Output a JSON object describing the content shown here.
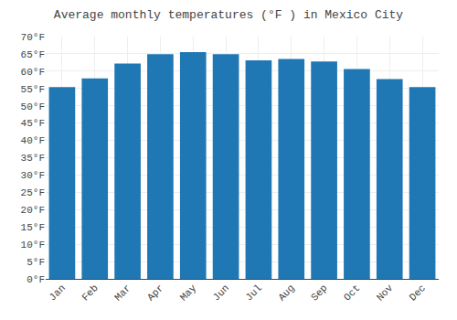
{
  "chart_data": {
    "type": "bar",
    "title": "Average monthly temperatures (°F ) in Mexico City",
    "categories": [
      "Jan",
      "Feb",
      "Mar",
      "Apr",
      "May",
      "Jun",
      "Jul",
      "Aug",
      "Sep",
      "Oct",
      "Nov",
      "Dec"
    ],
    "values": [
      55.4,
      57.9,
      62.2,
      64.9,
      65.5,
      64.9,
      63.1,
      63.5,
      62.8,
      60.6,
      57.7,
      55.4
    ],
    "ylim": [
      0,
      70
    ],
    "yticks": [
      {
        "value": 0,
        "label": "0°F"
      },
      {
        "value": 5,
        "label": "5°F"
      },
      {
        "value": 10,
        "label": "10°F"
      },
      {
        "value": 15,
        "label": "15°F"
      },
      {
        "value": 20,
        "label": "20°F"
      },
      {
        "value": 25,
        "label": "25°F"
      },
      {
        "value": 30,
        "label": "30°F"
      },
      {
        "value": 35,
        "label": "35°F"
      },
      {
        "value": 40,
        "label": "40°F"
      },
      {
        "value": 45,
        "label": "45°F"
      },
      {
        "value": 50,
        "label": "50°F"
      },
      {
        "value": 55,
        "label": "55°F"
      },
      {
        "value": 60,
        "label": "60°F"
      },
      {
        "value": 65,
        "label": "65°F"
      },
      {
        "value": 70,
        "label": "70°F"
      }
    ],
    "grid": true
  }
}
